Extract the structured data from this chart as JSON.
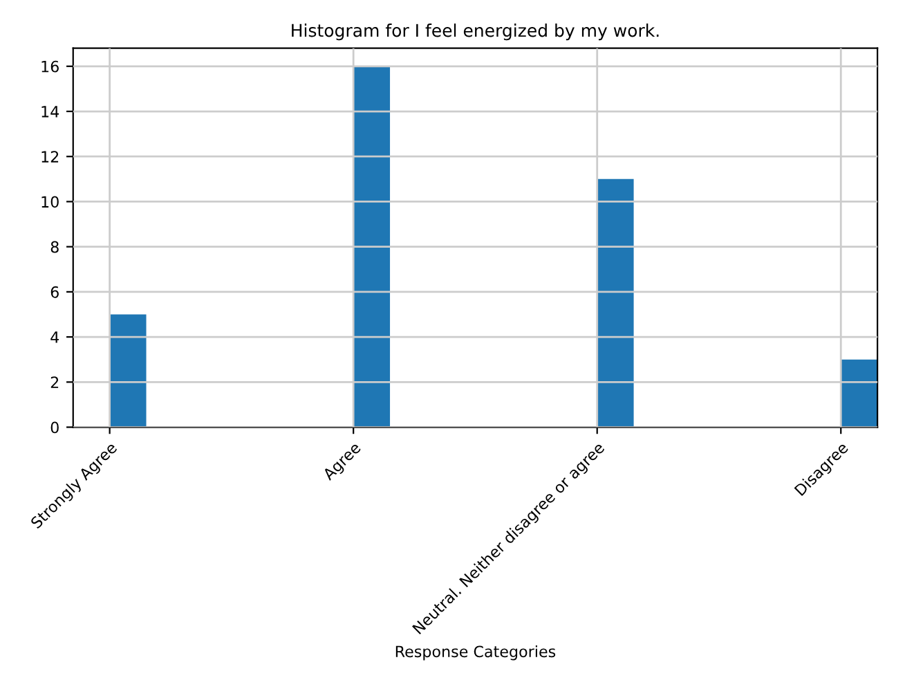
{
  "chart_data": {
    "type": "bar",
    "title": "Histogram for I feel energized by my work.",
    "xlabel": "Response Categories",
    "categories": [
      "Strongly Agree",
      "Agree",
      "Neutral. Neither disagree or agree",
      "Disagree"
    ],
    "values": [
      5,
      16,
      11,
      3
    ],
    "color": "#1f77b4",
    "ylim": [
      0,
      16.8
    ],
    "yticks": [
      0,
      2,
      4,
      6,
      8,
      10,
      12,
      14,
      16
    ],
    "grid": true
  }
}
